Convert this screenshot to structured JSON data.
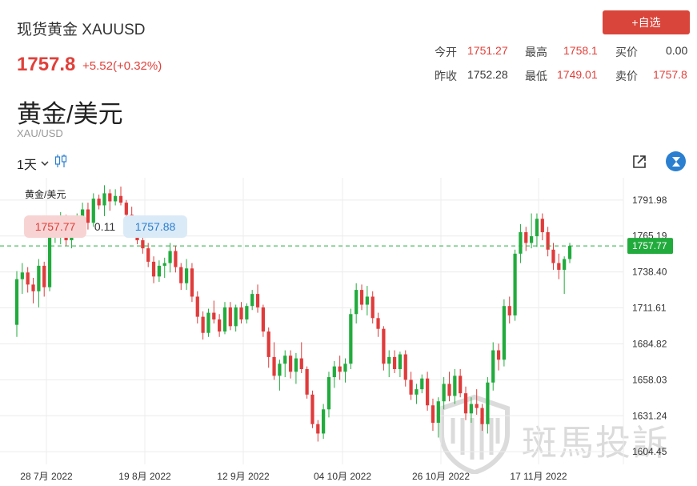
{
  "header": {
    "title": "现货黄金 XAUUSD",
    "price": "1757.8",
    "change": "+5.52(+0.32%)",
    "add_button": "+自选"
  },
  "quote": {
    "open_label": "今开",
    "open_value": "1751.27",
    "high_label": "最高",
    "high_value": "1758.1",
    "bid_label": "买价",
    "bid_value": "0.00",
    "prev_close_label": "昨收",
    "prev_close_value": "1752.28",
    "low_label": "最低",
    "low_value": "1749.01",
    "ask_label": "卖价",
    "ask_value": "1757.8"
  },
  "pair": {
    "title": "黄金/美元",
    "subtitle": "XAU/USD"
  },
  "toolbar": {
    "interval": "1天"
  },
  "watermark": "斑馬投訴",
  "colors": {
    "up": "#22ab3d",
    "down": "#e03b3b",
    "accent": "#d9453b",
    "current_price": "#22ab3d",
    "logo": "#2a7fd0"
  },
  "chart_data": {
    "type": "candlestick",
    "title": "黄金/美元",
    "tooltip": {
      "open": "1757.77",
      "diff": "0.11",
      "close": "1757.88"
    },
    "current_price": 1757.77,
    "current_price_label": "1757.77",
    "ylim": [
      1595,
      1805
    ],
    "yticks": [
      "1791.98",
      "1765.19",
      "1738.40",
      "1711.61",
      "1684.82",
      "1658.03",
      "1631.24",
      "1604.45"
    ],
    "xticks": [
      "28 7月 2022",
      "19 8月 2022",
      "12 9月 2022",
      "04 10月 2022",
      "26 10月 2022",
      "17 11月 2022"
    ],
    "candles": [
      [
        1699,
        1739,
        1690,
        1733
      ],
      [
        1733,
        1745,
        1722,
        1738
      ],
      [
        1738,
        1742,
        1723,
        1729
      ],
      [
        1729,
        1734,
        1715,
        1724
      ],
      [
        1724,
        1748,
        1712,
        1743
      ],
      [
        1743,
        1746,
        1720,
        1727
      ],
      [
        1727,
        1770,
        1724,
        1764
      ],
      [
        1764,
        1775,
        1760,
        1770
      ],
      [
        1770,
        1783,
        1759,
        1773
      ],
      [
        1773,
        1781,
        1758,
        1762
      ],
      [
        1762,
        1775,
        1756,
        1771
      ],
      [
        1771,
        1782,
        1766,
        1776
      ],
      [
        1776,
        1790,
        1770,
        1785
      ],
      [
        1785,
        1790,
        1770,
        1775
      ],
      [
        1775,
        1797,
        1772,
        1793
      ],
      [
        1793,
        1796,
        1785,
        1788
      ],
      [
        1788,
        1803,
        1780,
        1797
      ],
      [
        1797,
        1800,
        1784,
        1791
      ],
      [
        1791,
        1800,
        1788,
        1795
      ],
      [
        1795,
        1802,
        1788,
        1790
      ],
      [
        1790,
        1792,
        1775,
        1781
      ],
      [
        1781,
        1787,
        1766,
        1776
      ],
      [
        1776,
        1778,
        1759,
        1762
      ],
      [
        1762,
        1764,
        1752,
        1756
      ],
      [
        1756,
        1760,
        1742,
        1746
      ],
      [
        1746,
        1750,
        1730,
        1735
      ],
      [
        1735,
        1747,
        1731,
        1743
      ],
      [
        1743,
        1749,
        1734,
        1745
      ],
      [
        1745,
        1760,
        1738,
        1754
      ],
      [
        1754,
        1758,
        1738,
        1742
      ],
      [
        1742,
        1745,
        1725,
        1730
      ],
      [
        1730,
        1748,
        1725,
        1741
      ],
      [
        1741,
        1745,
        1716,
        1720
      ],
      [
        1720,
        1724,
        1700,
        1705
      ],
      [
        1705,
        1709,
        1688,
        1693
      ],
      [
        1693,
        1711,
        1690,
        1708
      ],
      [
        1708,
        1717,
        1700,
        1703
      ],
      [
        1703,
        1707,
        1690,
        1694
      ],
      [
        1694,
        1716,
        1692,
        1712
      ],
      [
        1712,
        1716,
        1695,
        1698
      ],
      [
        1698,
        1714,
        1694,
        1712
      ],
      [
        1712,
        1716,
        1700,
        1703
      ],
      [
        1703,
        1715,
        1700,
        1713
      ],
      [
        1713,
        1725,
        1710,
        1722
      ],
      [
        1722,
        1729,
        1708,
        1712
      ],
      [
        1712,
        1714,
        1690,
        1694
      ],
      [
        1694,
        1697,
        1667,
        1675
      ],
      [
        1675,
        1686,
        1658,
        1661
      ],
      [
        1661,
        1673,
        1650,
        1670
      ],
      [
        1670,
        1680,
        1660,
        1676
      ],
      [
        1676,
        1680,
        1659,
        1664
      ],
      [
        1664,
        1678,
        1655,
        1674
      ],
      [
        1674,
        1686,
        1663,
        1666
      ],
      [
        1666,
        1668,
        1644,
        1647
      ],
      [
        1647,
        1650,
        1622,
        1625
      ],
      [
        1625,
        1628,
        1612,
        1618
      ],
      [
        1618,
        1640,
        1614,
        1636
      ],
      [
        1636,
        1664,
        1630,
        1660
      ],
      [
        1660,
        1672,
        1652,
        1668
      ],
      [
        1668,
        1676,
        1658,
        1664
      ],
      [
        1664,
        1674,
        1656,
        1670
      ],
      [
        1670,
        1711,
        1666,
        1707
      ],
      [
        1707,
        1730,
        1700,
        1725
      ],
      [
        1725,
        1729,
        1710,
        1714
      ],
      [
        1714,
        1728,
        1706,
        1720
      ],
      [
        1720,
        1724,
        1700,
        1704
      ],
      [
        1704,
        1708,
        1690,
        1696
      ],
      [
        1696,
        1698,
        1665,
        1670
      ],
      [
        1670,
        1680,
        1660,
        1675
      ],
      [
        1675,
        1680,
        1663,
        1666
      ],
      [
        1666,
        1679,
        1660,
        1677
      ],
      [
        1677,
        1680,
        1653,
        1658
      ],
      [
        1658,
        1664,
        1643,
        1647
      ],
      [
        1647,
        1655,
        1640,
        1651
      ],
      [
        1651,
        1662,
        1648,
        1659
      ],
      [
        1659,
        1664,
        1635,
        1639
      ],
      [
        1639,
        1644,
        1620,
        1626
      ],
      [
        1626,
        1645,
        1615,
        1642
      ],
      [
        1642,
        1660,
        1636,
        1655
      ],
      [
        1655,
        1664,
        1642,
        1646
      ],
      [
        1646,
        1666,
        1640,
        1661
      ],
      [
        1661,
        1666,
        1645,
        1648
      ],
      [
        1648,
        1653,
        1628,
        1633
      ],
      [
        1633,
        1645,
        1626,
        1640
      ],
      [
        1640,
        1651,
        1632,
        1637
      ],
      [
        1637,
        1640,
        1620,
        1625
      ],
      [
        1625,
        1660,
        1618,
        1656
      ],
      [
        1656,
        1686,
        1650,
        1680
      ],
      [
        1680,
        1685,
        1665,
        1673
      ],
      [
        1673,
        1718,
        1668,
        1713
      ],
      [
        1713,
        1720,
        1700,
        1706
      ],
      [
        1706,
        1755,
        1702,
        1752
      ],
      [
        1752,
        1774,
        1745,
        1768
      ],
      [
        1768,
        1772,
        1754,
        1760
      ],
      [
        1760,
        1782,
        1756,
        1765
      ],
      [
        1765,
        1782,
        1757,
        1778
      ],
      [
        1778,
        1782,
        1762,
        1768
      ],
      [
        1768,
        1772,
        1750,
        1755
      ],
      [
        1755,
        1760,
        1740,
        1745
      ],
      [
        1745,
        1752,
        1733,
        1740
      ],
      [
        1740,
        1750,
        1722,
        1748
      ],
      [
        1748,
        1760,
        1745,
        1757.77
      ]
    ]
  }
}
